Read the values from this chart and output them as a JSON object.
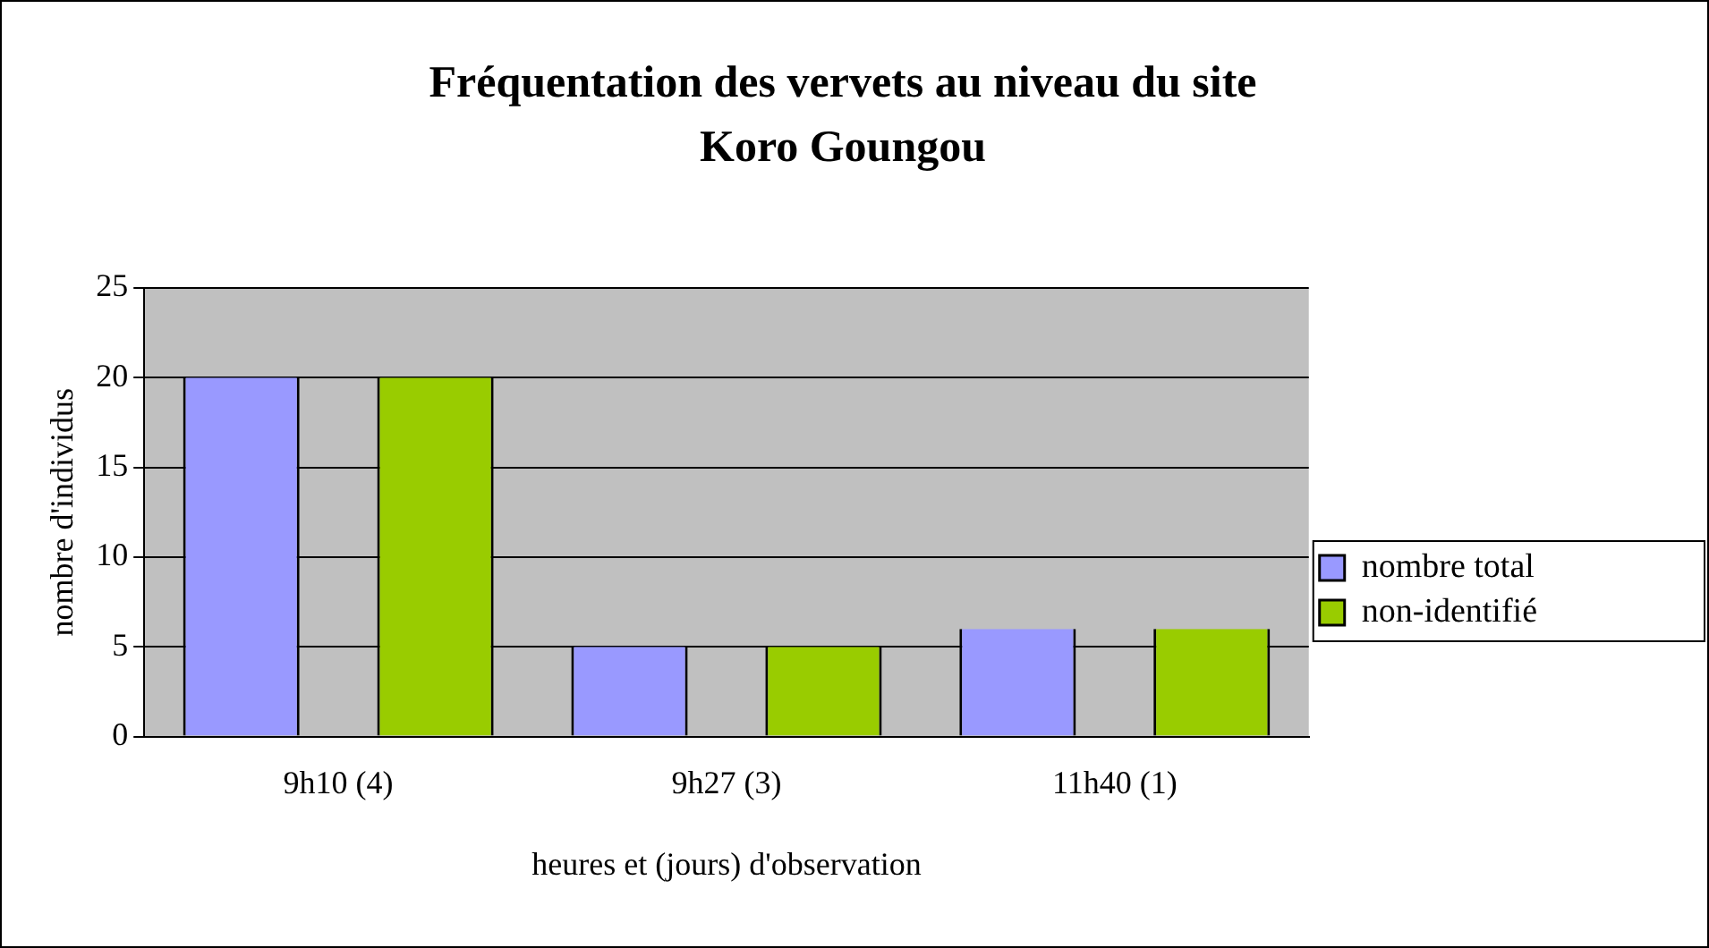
{
  "chart_data": {
    "type": "bar",
    "title": "Fréquentation des vervets au niveau du site Koro Goungou",
    "xlabel": "heures et (jours) d'observation",
    "ylabel": "nombre d'individus",
    "categories": [
      "9h10 (4)",
      "9h27 (3)",
      "11h40 (1)"
    ],
    "series": [
      {
        "name": "nombre total",
        "color": "#9999ff",
        "values": [
          20,
          5,
          6
        ]
      },
      {
        "name": "non-identifié",
        "color": "#99cc00",
        "values": [
          20,
          5,
          6
        ]
      }
    ],
    "ylim": [
      0,
      25
    ],
    "yticks": [
      0,
      5,
      10,
      15,
      20,
      25
    ],
    "grid": "y",
    "legend": "right"
  }
}
